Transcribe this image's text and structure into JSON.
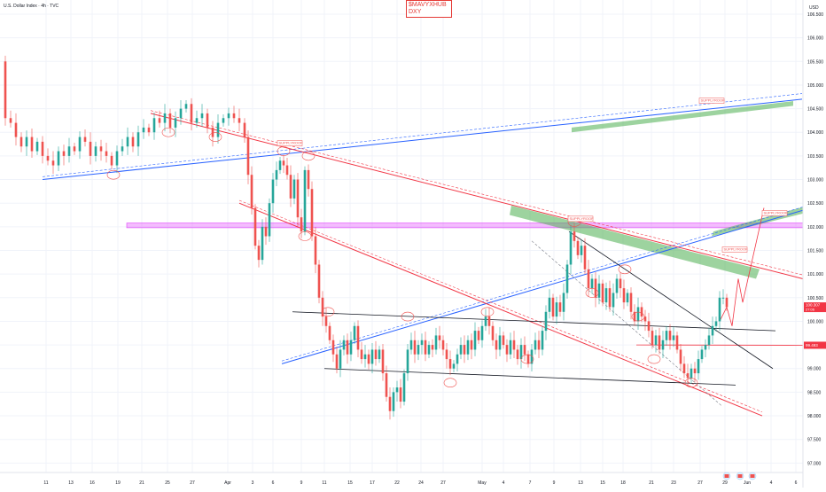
{
  "header": {
    "symbol_title": "U.S. Dollar Index · 4h · TVC",
    "brand_line1": "$MAVYXHUB",
    "brand_line2": "DXY",
    "currency": "USD"
  },
  "colors": {
    "bull": "#26a69a",
    "bear": "#ef5350",
    "trend_red": "#f23645",
    "trend_blue": "#2962ff",
    "trend_black": "#131722",
    "zone_green": "#4caf50",
    "zone_pink": "#e040fb",
    "price_badge": "#f23645"
  },
  "labels": {
    "supply_roof": "SUPPLYROOF",
    "current_price": "100.307",
    "countdown": "27:06",
    "level_price": "99.493"
  },
  "chart_data": {
    "type": "candlestick",
    "title": "U.S. Dollar Index",
    "timeframe": "4h",
    "ylim": [
      96.8,
      106.8
    ],
    "y_ticks": [
      97.0,
      97.5,
      98.0,
      98.5,
      99.0,
      99.5,
      100.0,
      100.5,
      101.0,
      101.5,
      102.0,
      102.5,
      103.0,
      103.5,
      104.0,
      104.5,
      105.0,
      105.5,
      106.0,
      106.5
    ],
    "x_ticks": [
      "11",
      "13",
      "16",
      "19",
      "21",
      "25",
      "27",
      "Apr",
      "3",
      "6",
      "9",
      "11",
      "15",
      "17",
      "22",
      "24",
      "27",
      "May",
      "4",
      "7",
      "9",
      "13",
      "15",
      "18",
      "21",
      "23",
      "27",
      "29",
      "Jun",
      "4",
      "6"
    ],
    "path": [
      [
        0,
        105.5
      ],
      [
        6,
        104.3
      ],
      [
        12,
        104.2
      ],
      [
        18,
        103.9
      ],
      [
        24,
        103.7
      ],
      [
        30,
        103.9
      ],
      [
        36,
        103.6
      ],
      [
        42,
        103.8
      ],
      [
        48,
        103.5
      ],
      [
        54,
        103.4
      ],
      [
        60,
        103.3
      ],
      [
        66,
        103.6
      ],
      [
        72,
        103.5
      ],
      [
        78,
        103.7
      ],
      [
        84,
        103.6
      ],
      [
        90,
        103.9
      ],
      [
        96,
        103.8
      ],
      [
        102,
        103.5
      ],
      [
        108,
        103.7
      ],
      [
        114,
        103.6
      ],
      [
        120,
        103.5
      ],
      [
        126,
        103.3
      ],
      [
        132,
        103.6
      ],
      [
        138,
        103.7
      ],
      [
        144,
        103.9
      ],
      [
        150,
        103.7
      ],
      [
        156,
        104.0
      ],
      [
        162,
        104.1
      ],
      [
        168,
        104.0
      ],
      [
        174,
        104.3
      ],
      [
        180,
        104.2
      ],
      [
        186,
        104.4
      ],
      [
        192,
        104.1
      ],
      [
        198,
        104.3
      ],
      [
        204,
        104.5
      ],
      [
        210,
        104.6
      ],
      [
        216,
        104.2
      ],
      [
        222,
        104.3
      ],
      [
        228,
        104.4
      ],
      [
        234,
        104.1
      ],
      [
        240,
        103.9
      ],
      [
        246,
        104.2
      ],
      [
        252,
        104.3
      ],
      [
        258,
        104.4
      ],
      [
        264,
        104.3
      ],
      [
        270,
        104.2
      ],
      [
        276,
        103.9
      ],
      [
        280,
        103.1
      ],
      [
        284,
        102.4
      ],
      [
        288,
        101.6
      ],
      [
        292,
        101.3
      ],
      [
        296,
        102.0
      ],
      [
        300,
        101.8
      ],
      [
        304,
        102.5
      ],
      [
        308,
        103.0
      ],
      [
        312,
        103.2
      ],
      [
        316,
        103.4
      ],
      [
        320,
        103.3
      ],
      [
        324,
        103.1
      ],
      [
        328,
        102.6
      ],
      [
        332,
        103.0
      ],
      [
        336,
        102.2
      ],
      [
        340,
        101.9
      ],
      [
        344,
        103.2
      ],
      [
        348,
        102.8
      ],
      [
        352,
        101.8
      ],
      [
        356,
        101.2
      ],
      [
        360,
        100.5
      ],
      [
        364,
        100.1
      ],
      [
        368,
        99.9
      ],
      [
        372,
        99.6
      ],
      [
        376,
        99.3
      ],
      [
        380,
        99.0
      ],
      [
        384,
        99.4
      ],
      [
        388,
        99.6
      ],
      [
        392,
        99.3
      ],
      [
        396,
        99.6
      ],
      [
        400,
        99.9
      ],
      [
        404,
        99.4
      ],
      [
        408,
        99.2
      ],
      [
        412,
        99.3
      ],
      [
        416,
        99.1
      ],
      [
        420,
        99.4
      ],
      [
        424,
        99.2
      ],
      [
        428,
        99.4
      ],
      [
        432,
        98.9
      ],
      [
        436,
        98.4
      ],
      [
        440,
        98.1
      ],
      [
        444,
        98.5
      ],
      [
        448,
        98.6
      ],
      [
        452,
        98.3
      ],
      [
        456,
        98.9
      ],
      [
        460,
        99.4
      ],
      [
        464,
        99.6
      ],
      [
        468,
        99.3
      ],
      [
        472,
        99.5
      ],
      [
        476,
        99.6
      ],
      [
        480,
        99.3
      ],
      [
        484,
        99.5
      ],
      [
        488,
        99.4
      ],
      [
        492,
        99.7
      ],
      [
        496,
        99.6
      ],
      [
        500,
        99.4
      ],
      [
        504,
        99.2
      ],
      [
        508,
        99.0
      ],
      [
        512,
        99.1
      ],
      [
        516,
        99.3
      ],
      [
        520,
        99.5
      ],
      [
        524,
        99.3
      ],
      [
        528,
        99.6
      ],
      [
        532,
        99.4
      ],
      [
        536,
        99.8
      ],
      [
        540,
        99.6
      ],
      [
        544,
        99.9
      ],
      [
        548,
        100.1
      ],
      [
        552,
        99.9
      ],
      [
        556,
        99.6
      ],
      [
        560,
        99.4
      ],
      [
        564,
        99.7
      ],
      [
        568,
        99.5
      ],
      [
        572,
        99.3
      ],
      [
        576,
        99.6
      ],
      [
        580,
        99.4
      ],
      [
        584,
        99.2
      ],
      [
        588,
        99.5
      ],
      [
        592,
        99.3
      ],
      [
        596,
        99.1
      ],
      [
        600,
        99.4
      ],
      [
        604,
        99.6
      ],
      [
        608,
        99.4
      ],
      [
        612,
        99.8
      ],
      [
        616,
        100.2
      ],
      [
        620,
        100.5
      ],
      [
        624,
        100.1
      ],
      [
        628,
        100.4
      ],
      [
        632,
        100.2
      ],
      [
        636,
        100.6
      ],
      [
        640,
        101.2
      ],
      [
        644,
        101.9
      ],
      [
        648,
        101.7
      ],
      [
        652,
        101.4
      ],
      [
        656,
        101.6
      ],
      [
        660,
        101.1
      ],
      [
        664,
        100.7
      ],
      [
        668,
        100.9
      ],
      [
        672,
        100.5
      ],
      [
        676,
        100.8
      ],
      [
        680,
        100.4
      ],
      [
        684,
        100.7
      ],
      [
        688,
        100.3
      ],
      [
        692,
        100.6
      ],
      [
        696,
        100.9
      ],
      [
        700,
        100.7
      ],
      [
        704,
        100.4
      ],
      [
        708,
        100.6
      ],
      [
        712,
        100.2
      ],
      [
        716,
        100.0
      ],
      [
        720,
        100.3
      ],
      [
        724,
        100.1
      ],
      [
        728,
        100.0
      ],
      [
        732,
        99.8
      ],
      [
        736,
        99.5
      ],
      [
        740,
        99.7
      ],
      [
        744,
        99.4
      ],
      [
        748,
        99.6
      ],
      [
        752,
        99.8
      ],
      [
        756,
        99.6
      ],
      [
        760,
        99.7
      ],
      [
        764,
        99.4
      ],
      [
        768,
        99.1
      ],
      [
        772,
        98.9
      ],
      [
        776,
        98.8
      ],
      [
        780,
        99.0
      ],
      [
        784,
        98.9
      ],
      [
        788,
        99.2
      ],
      [
        792,
        99.4
      ],
      [
        796,
        99.5
      ],
      [
        800,
        99.7
      ],
      [
        804,
        99.9
      ],
      [
        808,
        100.0
      ],
      [
        812,
        100.5
      ],
      [
        816,
        100.5
      ],
      [
        820,
        100.3
      ]
    ]
  }
}
